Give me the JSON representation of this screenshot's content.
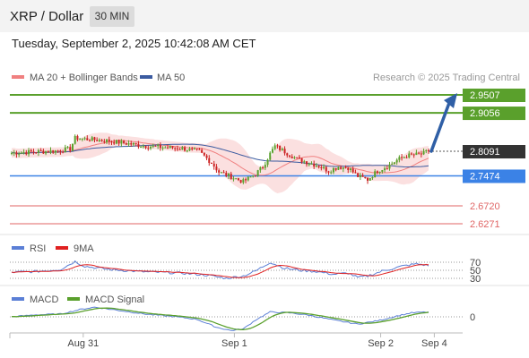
{
  "header": {
    "title": "XRP / Dollar",
    "interval": "30 MIN"
  },
  "datetime": "Tuesday, September 2, 2025 10:42:08 AM CET",
  "copyright": "Research © 2025 Trading Central",
  "colors": {
    "bb_fill": "#fbe0e0",
    "ma20": "#f08080",
    "ma50": "#3b5ba0",
    "resistance": "#5aa02c",
    "pivot": "#3b82e6",
    "support": "#e06666",
    "current": "#333333",
    "rsi": "#5b7fd6",
    "rsi_ma": "#e02020",
    "macd": "#5b7fd6",
    "macd_signal": "#5aa02c",
    "arrow": "#2f5fa6",
    "up_candle": "#5aa02c",
    "down_candle": "#cc2222"
  },
  "chart_data": [
    {
      "type": "candlestick",
      "legend": [
        {
          "name": "MA 20 + Bollinger Bands",
          "color": "#f08080"
        },
        {
          "name": "MA 50",
          "color": "#3b5ba0"
        }
      ],
      "levels": [
        {
          "value": 2.9507,
          "label": "2.9507",
          "kind": "resistance"
        },
        {
          "value": 2.9056,
          "label": "2.9056",
          "kind": "resistance"
        },
        {
          "value": 2.8091,
          "label": "2.8091",
          "kind": "current"
        },
        {
          "value": 2.7474,
          "label": "2.7474",
          "kind": "pivot"
        },
        {
          "value": 2.672,
          "label": "2.6720",
          "kind": "support"
        },
        {
          "value": 2.6271,
          "label": "2.6271",
          "kind": "support"
        }
      ],
      "projection": {
        "from": 2.8091,
        "to": 2.9507
      },
      "anchors": [
        [
          0,
          2.805
        ],
        [
          10,
          2.808
        ],
        [
          18,
          2.81
        ],
        [
          24,
          2.815
        ],
        [
          26,
          2.842
        ],
        [
          30,
          2.84
        ],
        [
          40,
          2.835
        ],
        [
          55,
          2.822
        ],
        [
          70,
          2.816
        ],
        [
          77,
          2.808
        ],
        [
          82,
          2.78
        ],
        [
          85,
          2.757
        ],
        [
          90,
          2.745
        ],
        [
          95,
          2.733
        ],
        [
          100,
          2.752
        ],
        [
          103,
          2.77
        ],
        [
          106,
          2.803
        ],
        [
          108,
          2.822
        ],
        [
          112,
          2.808
        ],
        [
          117,
          2.79
        ],
        [
          122,
          2.78
        ],
        [
          126,
          2.772
        ],
        [
          130,
          2.76
        ],
        [
          134,
          2.77
        ],
        [
          138,
          2.768
        ],
        [
          142,
          2.746
        ],
        [
          146,
          2.738
        ],
        [
          150,
          2.76
        ],
        [
          155,
          2.774
        ],
        [
          158,
          2.787
        ],
        [
          162,
          2.798
        ],
        [
          168,
          2.802
        ],
        [
          171,
          2.809
        ]
      ],
      "x_ticks": [
        {
          "label": "Aug 31",
          "index": 22
        },
        {
          "label": "Sep 1",
          "index": 84
        },
        {
          "label": "Sep 2",
          "index": 144
        },
        {
          "label": "Sep 4",
          "index": 166
        }
      ],
      "bars": 172
    },
    {
      "type": "line",
      "legend": [
        {
          "name": "RSI",
          "color": "#5b7fd6"
        },
        {
          "name": "9MA",
          "color": "#e02020"
        }
      ],
      "y_ticks": [
        70,
        50,
        30
      ],
      "ylim": [
        0,
        100
      ],
      "anchors": [
        [
          0,
          45
        ],
        [
          10,
          47
        ],
        [
          20,
          52
        ],
        [
          26,
          72
        ],
        [
          30,
          60
        ],
        [
          40,
          52
        ],
        [
          55,
          46
        ],
        [
          70,
          43
        ],
        [
          80,
          38
        ],
        [
          88,
          30
        ],
        [
          95,
          36
        ],
        [
          100,
          48
        ],
        [
          106,
          70
        ],
        [
          112,
          55
        ],
        [
          118,
          50
        ],
        [
          125,
          47
        ],
        [
          132,
          40
        ],
        [
          138,
          43
        ],
        [
          142,
          32
        ],
        [
          146,
          36
        ],
        [
          152,
          48
        ],
        [
          160,
          60
        ],
        [
          166,
          66
        ],
        [
          171,
          62
        ]
      ]
    },
    {
      "type": "line",
      "legend": [
        {
          "name": "MACD",
          "color": "#5b7fd6"
        },
        {
          "name": "MACD Signal",
          "color": "#5aa02c"
        }
      ],
      "y_ticks": [
        0
      ],
      "anchors": [
        [
          0,
          0.0
        ],
        [
          10,
          0.25
        ],
        [
          20,
          0.35
        ],
        [
          28,
          0.9
        ],
        [
          34,
          1.2
        ],
        [
          44,
          0.8
        ],
        [
          56,
          0.3
        ],
        [
          66,
          0.05
        ],
        [
          76,
          -0.3
        ],
        [
          84,
          -1.3
        ],
        [
          90,
          -1.7
        ],
        [
          95,
          -1.5
        ],
        [
          100,
          -0.4
        ],
        [
          106,
          0.6
        ],
        [
          114,
          0.5
        ],
        [
          122,
          0.2
        ],
        [
          132,
          -0.4
        ],
        [
          142,
          -0.9
        ],
        [
          150,
          -0.5
        ],
        [
          158,
          0.1
        ],
        [
          164,
          0.5
        ],
        [
          171,
          0.6
        ]
      ]
    }
  ]
}
